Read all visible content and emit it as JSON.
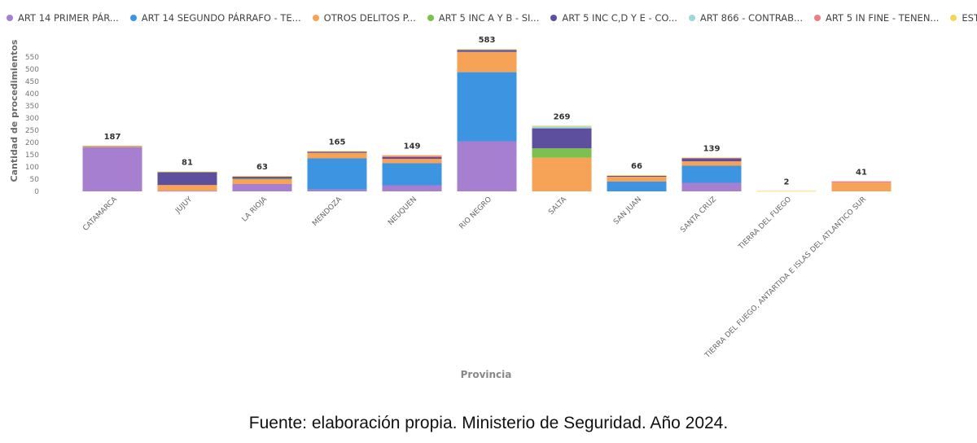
{
  "chart_data": {
    "type": "bar",
    "stacked": true,
    "title": "",
    "xlabel": "Provincia",
    "ylabel": "Cantidad de procedimientos",
    "ylim": [
      0,
      580
    ],
    "yticks": [
      0,
      50,
      100,
      150,
      200,
      250,
      300,
      350,
      400,
      450,
      500,
      550
    ],
    "grid": false,
    "legend_position": "top",
    "categories": [
      "CATAMARCA",
      "JUJUY",
      "LA RIOJA",
      "MENDOZA",
      "NEUQUEN",
      "RIO NEGRO",
      "SALTA",
      "SAN JUAN",
      "SANTA CRUZ",
      "TIERRA DEL FUEGO",
      "TIERRA DEL FUEGO, ANTARTIDA E ISLAS DEL ATLANTICO SUR"
    ],
    "totals": [
      187,
      81,
      63,
      165,
      149,
      583,
      269,
      66,
      139,
      2,
      41
    ],
    "series": [
      {
        "name": "ART 14 PRIMER PÁR...",
        "color": "#a77fd0",
        "values": [
          181,
          2,
          30,
          8,
          25,
          205,
          0,
          0,
          35,
          0,
          0
        ]
      },
      {
        "name": "ART 14 SEGUNDO PÁRRAFO - TE...",
        "color": "#3d94e0",
        "values": [
          0,
          0,
          0,
          127,
          90,
          283,
          0,
          40,
          70,
          0,
          0
        ]
      },
      {
        "name": "OTROS DELITOS P...",
        "color": "#f6a257",
        "values": [
          3,
          24,
          20,
          23,
          18,
          83,
          138,
          20,
          18,
          0,
          36
        ]
      },
      {
        "name": "ART 5 INC A Y B - SI...",
        "color": "#7cc04d",
        "values": [
          0,
          0,
          2,
          0,
          0,
          0,
          38,
          0,
          0,
          0,
          0
        ]
      },
      {
        "name": "ART 5 INC C,D Y E - CO...",
        "color": "#5e4e9e",
        "values": [
          2,
          53,
          8,
          5,
          7,
          8,
          82,
          4,
          12,
          0,
          0
        ]
      },
      {
        "name": "ART 866 - CONTRAB...",
        "color": "#9fd8da",
        "values": [
          0,
          0,
          0,
          0,
          0,
          2,
          8,
          0,
          0,
          0,
          0
        ]
      },
      {
        "name": "ART 5 IN FINE - TENEN...",
        "color": "#ea8086",
        "values": [
          0,
          0,
          2,
          0,
          6,
          0,
          0,
          0,
          2,
          0,
          5
        ]
      },
      {
        "name": "ESTU...",
        "color": "#f6d55c",
        "values": [
          1,
          2,
          1,
          2,
          3,
          2,
          3,
          2,
          2,
          2,
          0
        ]
      }
    ]
  },
  "caption": "Fuente: elaboración propia. Ministerio de Seguridad. Año 2024."
}
